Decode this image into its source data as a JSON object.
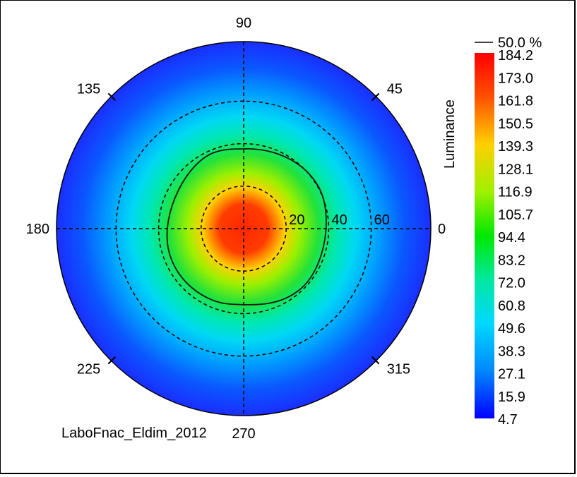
{
  "chart_data": {
    "type": "heatmap",
    "projection": "polar",
    "title": "",
    "colorbar": {
      "label": "Luminance",
      "ticks": [
        "184.2",
        "173.0",
        "161.8",
        "150.5",
        "139.3",
        "128.1",
        "116.9",
        "105.7",
        "94.4",
        "83.2",
        "72.0",
        "60.8",
        "49.6",
        "38.3",
        "27.1",
        "15.9",
        "4.7"
      ],
      "range": [
        4.7,
        184.2
      ],
      "colormap": "jet",
      "contour_legend": "50.0 %"
    },
    "angle_labels": [
      {
        "deg": 0,
        "text": "0"
      },
      {
        "deg": 45,
        "text": "45"
      },
      {
        "deg": 90,
        "text": "90"
      },
      {
        "deg": 135,
        "text": "135"
      },
      {
        "deg": 180,
        "text": "180"
      },
      {
        "deg": 225,
        "text": "225"
      },
      {
        "deg": 270,
        "text": "270"
      },
      {
        "deg": 315,
        "text": "315"
      }
    ],
    "radial_rings": [
      {
        "value": 20,
        "text": "20"
      },
      {
        "value": 40,
        "text": "40"
      },
      {
        "value": 60,
        "text": "60"
      }
    ],
    "radial_max": 88,
    "peak_luminance": 184.2,
    "contour_50pct_luminance": 92.1,
    "grid": true,
    "footer_label": "LaboFnac_Eldim_2012"
  }
}
